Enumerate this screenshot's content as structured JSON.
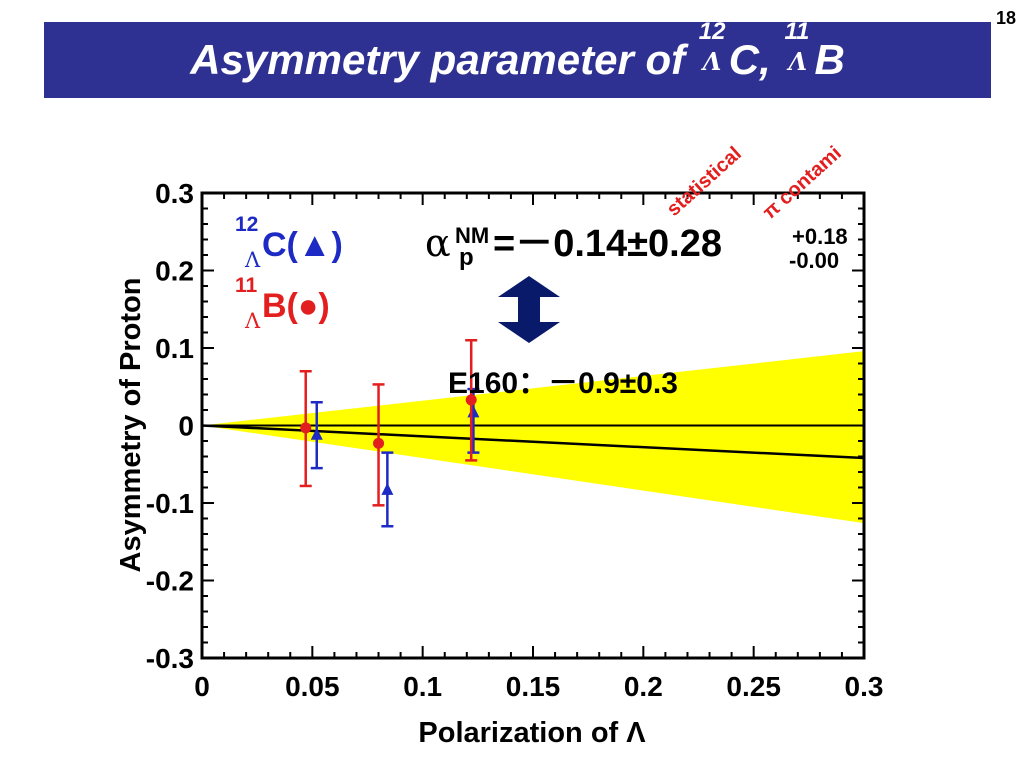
{
  "slide": {
    "page_number": "18",
    "title_prefix": "Asymmetry parameter of ",
    "title_nuclide1_mass": "12",
    "title_nuclide1_sub": "Λ",
    "title_nuclide1_symbol": "C,",
    "title_nuclide2_mass": "11",
    "title_nuclide2_sub": "Λ",
    "title_nuclide2_symbol": "B"
  },
  "colors": {
    "title_bg": "#2e3192",
    "band": "#ffff00",
    "carbon": "#1d2bc4",
    "boron": "#e31e1e",
    "annotation_red": "#e31e1e",
    "arrow": "#0a1a6b"
  },
  "chart_data": {
    "type": "scatter",
    "xlabel": "Polarization of Λ",
    "ylabel": "Asymmetry of Proton",
    "xlim": [
      0,
      0.3
    ],
    "ylim": [
      -0.3,
      0.3
    ],
    "x_ticks": [
      "0",
      "0.05",
      "0.1",
      "0.15",
      "0.2",
      "0.25",
      "0.3"
    ],
    "y_ticks": [
      "0.3",
      "0.2",
      "0.1",
      "0",
      "-0.1",
      "-0.2",
      "-0.3"
    ],
    "y_tick_values": [
      0.3,
      0.2,
      0.1,
      0,
      -0.1,
      -0.2,
      -0.3
    ],
    "x_tick_values": [
      0,
      0.05,
      0.1,
      0.15,
      0.2,
      0.25,
      0.3
    ],
    "legend": [
      {
        "mass": "12",
        "sub": "Λ",
        "label": "C(▲)",
        "color": "#1d2bc4"
      },
      {
        "mass": "11",
        "sub": "Λ",
        "label": "B(●)",
        "color": "#e31e1e"
      }
    ],
    "series": [
      {
        "name": "C(▲)",
        "marker": "triangle",
        "color": "#1d2bc4",
        "points": [
          {
            "x": 0.052,
            "y": -0.012,
            "ylo": -0.055,
            "yhi": 0.03
          },
          {
            "x": 0.084,
            "y": -0.083,
            "ylo": -0.13,
            "yhi": -0.035
          },
          {
            "x": 0.123,
            "y": 0.017,
            "ylo": -0.035,
            "yhi": 0.047
          }
        ]
      },
      {
        "name": "B(●)",
        "marker": "circle",
        "color": "#e31e1e",
        "points": [
          {
            "x": 0.047,
            "y": -0.003,
            "ylo": -0.078,
            "yhi": 0.07
          },
          {
            "x": 0.08,
            "y": -0.023,
            "ylo": -0.103,
            "yhi": 0.053
          },
          {
            "x": 0.122,
            "y": 0.033,
            "ylo": -0.045,
            "yhi": 0.11
          }
        ]
      }
    ],
    "fit_line": {
      "x": [
        0,
        0.3
      ],
      "y": [
        0,
        -0.042
      ]
    },
    "zero_line": {
      "y": 0
    },
    "band": {
      "x": [
        0,
        0.3
      ],
      "upper": [
        0,
        0.096
      ],
      "lower": [
        0,
        -0.126
      ]
    },
    "annotations": {
      "result_alpha": "α",
      "result_sub": "p",
      "result_sup": "NM",
      "result_value": "=－0.14±0.28",
      "result_err_plus": "+0.18",
      "result_err_minus": "-0.00",
      "statistical": "statistical",
      "pi_contami": "π contami",
      "e160": "E160：－0.9±0.3"
    }
  }
}
